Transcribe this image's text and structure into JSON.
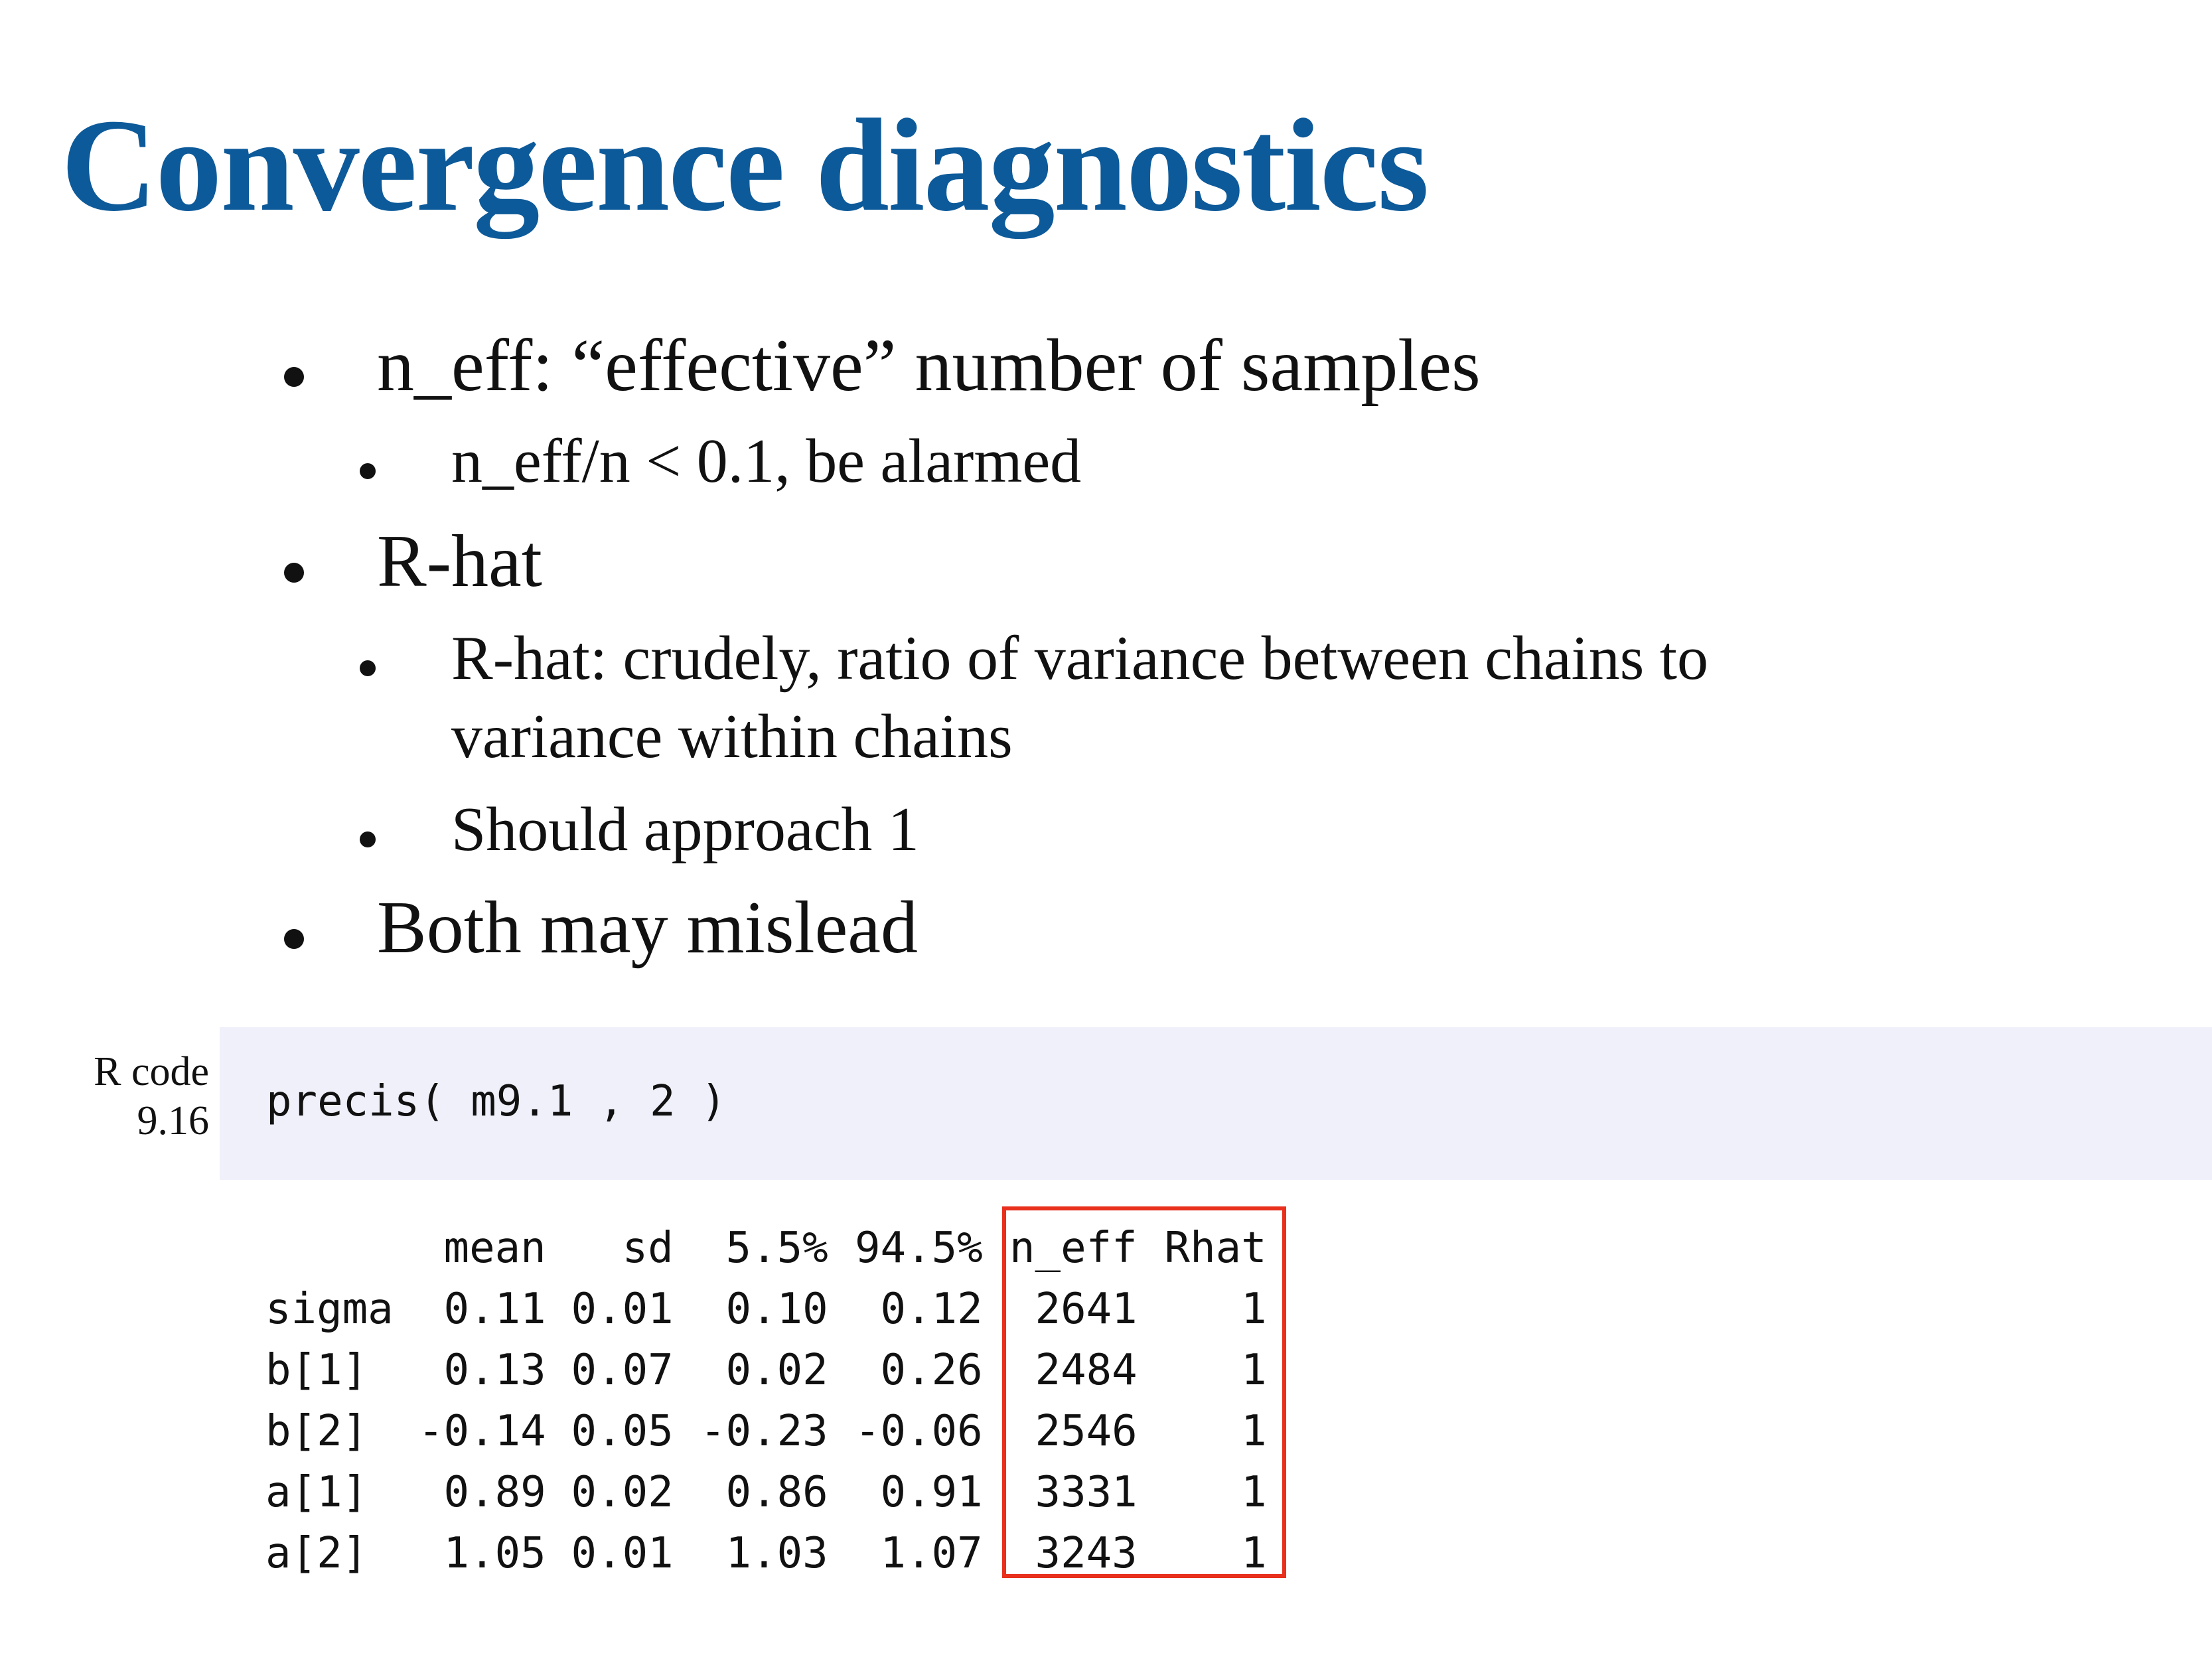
{
  "title": "Convergence diagnostics",
  "bullets": [
    {
      "level": 1,
      "text": "n_eff: “effective” number of samples"
    },
    {
      "level": 2,
      "text": "n_eff/n < 0.1, be alarmed"
    },
    {
      "level": 1,
      "text": "R-hat"
    },
    {
      "level": 2,
      "lines": [
        "R-hat: crudely, ratio of variance between chains to",
        "variance within chains"
      ]
    },
    {
      "level": 2,
      "text": "Should approach 1"
    },
    {
      "level": 1,
      "text": "Both may mislead"
    }
  ],
  "code_block": {
    "label_line1": "R code",
    "label_line2": "9.16",
    "code": "precis( m9.1 , 2 )"
  },
  "output_table": {
    "columns": [
      "mean",
      "sd",
      "5.5%",
      "94.5%",
      "n_eff",
      "Rhat"
    ],
    "rows": [
      {
        "name": "sigma",
        "values": [
          "0.11",
          "0.01",
          "0.10",
          "0.12",
          "2641",
          "1"
        ]
      },
      {
        "name": "b[1]",
        "values": [
          "0.13",
          "0.07",
          "0.02",
          "0.26",
          "2484",
          "1"
        ]
      },
      {
        "name": "b[2]",
        "values": [
          "-0.14",
          "0.05",
          "-0.23",
          "-0.06",
          "2546",
          "1"
        ]
      },
      {
        "name": "a[1]",
        "values": [
          "0.89",
          "0.02",
          "0.86",
          "0.91",
          "3331",
          "1"
        ]
      },
      {
        "name": "a[2]",
        "values": [
          "1.05",
          "0.01",
          "1.03",
          "1.07",
          "3243",
          "1"
        ]
      }
    ]
  },
  "colors": {
    "title": "#0d5a9a",
    "code_background": "#eff0fa",
    "highlight_border": "#e8301c"
  }
}
